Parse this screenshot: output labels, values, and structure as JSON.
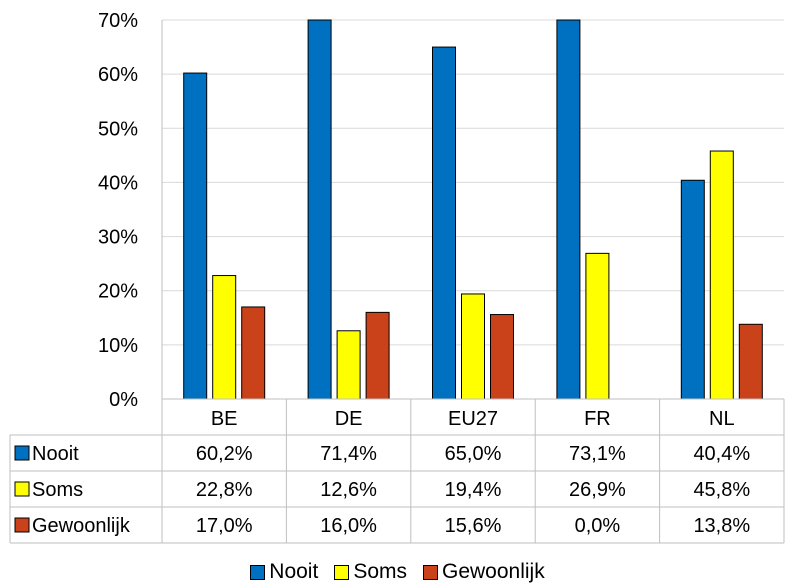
{
  "chart_data": {
    "type": "bar",
    "categories": [
      "BE",
      "DE",
      "EU27",
      "FR",
      "NL"
    ],
    "series": [
      {
        "name": "Nooit",
        "color": "#0070C0",
        "values": [
          60.2,
          71.4,
          65.0,
          73.1,
          40.4
        ],
        "labels": [
          "60,2%",
          "71,4%",
          "65,0%",
          "73,1%",
          "40,4%"
        ]
      },
      {
        "name": "Soms",
        "color": "#FFFF00",
        "values": [
          22.8,
          12.6,
          19.4,
          26.9,
          45.8
        ],
        "labels": [
          "22,8%",
          "12,6%",
          "19,4%",
          "26,9%",
          "45,8%"
        ]
      },
      {
        "name": "Gewoonlijk",
        "color": "#C9421A",
        "values": [
          17.0,
          16.0,
          15.6,
          0.0,
          13.8
        ],
        "labels": [
          "17,0%",
          "16,0%",
          "15,6%",
          "0,0%",
          "13,8%"
        ]
      }
    ],
    "ylim": [
      0,
      70
    ],
    "yticks": [
      0,
      10,
      20,
      30,
      40,
      50,
      60,
      70
    ],
    "ytick_labels": [
      "0%",
      "10%",
      "20%",
      "30%",
      "40%",
      "50%",
      "60%",
      "70%"
    ],
    "grid": true,
    "data_table": true,
    "legend_position": "bottom"
  }
}
